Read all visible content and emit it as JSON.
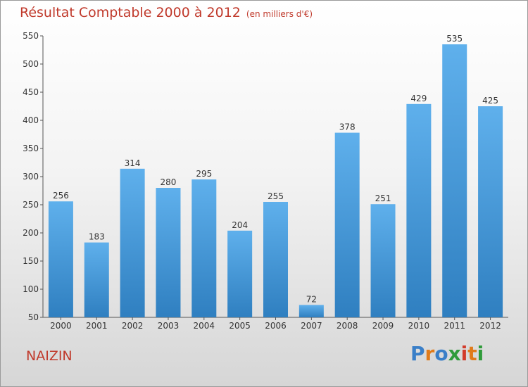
{
  "header": {
    "title": "Résultat Comptable 2000 à 2012",
    "subtitle": "(en milliers d'€)"
  },
  "footer": {
    "commune": "NAIZIN",
    "logo_text": "Proxiti"
  },
  "colors": {
    "bar_top": "#5fb0ec",
    "bar_bottom": "#2f7fc0",
    "title": "#c0392b"
  },
  "chart_data": {
    "type": "bar",
    "title": "Résultat Comptable 2000 à 2012",
    "subtitle": "(en milliers d'€)",
    "categories": [
      "2000",
      "2001",
      "2002",
      "2003",
      "2004",
      "2005",
      "2006",
      "2007",
      "2008",
      "2009",
      "2010",
      "2011",
      "2012"
    ],
    "values": [
      256,
      183,
      314,
      280,
      295,
      204,
      255,
      72,
      378,
      251,
      429,
      535,
      425
    ],
    "ylim": [
      50,
      550
    ],
    "yticks": [
      50,
      100,
      150,
      200,
      250,
      300,
      350,
      400,
      450,
      500,
      550
    ],
    "grid": false,
    "legend": "none"
  }
}
